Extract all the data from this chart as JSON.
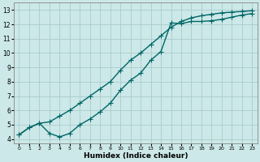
{
  "title": "",
  "xlabel": "Humidex (Indice chaleur)",
  "ylabel": "",
  "background_color": "#cce8e8",
  "grid_color": "#aacccc",
  "line_color": "#006666",
  "xlim": [
    -0.5,
    23.5
  ],
  "ylim": [
    3.7,
    13.5
  ],
  "xticks": [
    0,
    1,
    2,
    3,
    4,
    5,
    6,
    7,
    8,
    9,
    10,
    11,
    12,
    13,
    14,
    15,
    16,
    17,
    18,
    19,
    20,
    21,
    22,
    23
  ],
  "yticks": [
    4,
    5,
    6,
    7,
    8,
    9,
    10,
    11,
    12,
    13
  ],
  "curve1_x": [
    0,
    1,
    2,
    3,
    4,
    5,
    6,
    7,
    8,
    9,
    10,
    11,
    12,
    13,
    14,
    15,
    16,
    17,
    18,
    19,
    20,
    21,
    22,
    23
  ],
  "curve1_y": [
    4.3,
    4.8,
    5.1,
    4.4,
    4.15,
    4.4,
    5.0,
    5.4,
    5.9,
    6.5,
    7.4,
    8.1,
    8.6,
    9.5,
    10.1,
    12.1,
    12.05,
    12.2,
    12.2,
    12.25,
    12.35,
    12.5,
    12.65,
    12.75
  ],
  "curve2_x": [
    0,
    1,
    2,
    3,
    4,
    5,
    6,
    7,
    8,
    9,
    10,
    11,
    12,
    13,
    14,
    15,
    16,
    17,
    18,
    19,
    20,
    21,
    22,
    23
  ],
  "curve2_y": [
    4.3,
    4.8,
    5.1,
    5.2,
    5.6,
    6.0,
    6.5,
    7.0,
    7.5,
    8.0,
    8.8,
    9.5,
    10.0,
    10.6,
    11.2,
    11.8,
    12.2,
    12.45,
    12.6,
    12.7,
    12.8,
    12.85,
    12.9,
    12.95
  ],
  "marker_size": 2.5,
  "line_width": 1.0
}
